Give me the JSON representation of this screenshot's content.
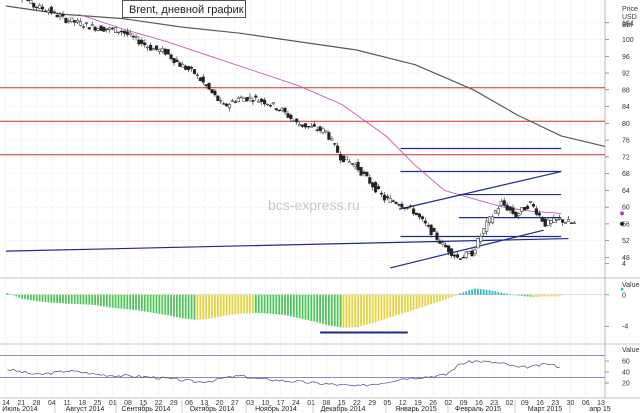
{
  "title": "Brent, дневной график",
  "watermark": "bcs-express.ru",
  "price_axis": {
    "header": [
      "Price",
      "USD",
      "Bbl"
    ],
    "ticks": [
      "104",
      "100",
      "96",
      "92",
      "88",
      "84",
      "80",
      "76",
      "72",
      "68",
      "64",
      "60",
      "56",
      "52",
      "48"
    ]
  },
  "indicator_axis": {
    "header": "Value",
    "ticks": [
      "4",
      "0",
      "-4"
    ]
  },
  "rsi_axis": {
    "header": "Value",
    "ticks": [
      "60",
      "40",
      "20"
    ]
  },
  "day_ticks": [
    "14",
    "21",
    "28",
    "04",
    "11",
    "18",
    "25",
    "01",
    "08",
    "15",
    "22",
    "29",
    "06",
    "13",
    "20",
    "27",
    "03",
    "10",
    "17",
    "24",
    "01",
    "08",
    "15",
    "22",
    "29",
    "05",
    "12",
    "19",
    "26",
    "02",
    "09",
    "16",
    "23",
    "02",
    "09",
    "16",
    "23",
    "30",
    "06",
    "13"
  ],
  "month_labels": [
    "Июль 2014",
    "Август 2014",
    "Сентябрь 2014",
    "Октябрь 2014",
    "Ноябрь 2014",
    "Декабрь 2014",
    "Январь 2015",
    "Февраль 2015",
    "Март 2015",
    "апр 15"
  ],
  "chart_data": {
    "type": "candlestick",
    "title": "Brent, дневной график",
    "price_ylim": [
      45,
      108
    ],
    "horizontal_levels": [
      {
        "value": 88.5,
        "color": "#c83232"
      },
      {
        "value": 80.5,
        "color": "#c83232"
      },
      {
        "value": 72.5,
        "color": "#c83232"
      },
      {
        "value": 74.0,
        "color": "#1e2a8c",
        "from_week": 27,
        "to_week": 38
      },
      {
        "value": 68.5,
        "color": "#1e2a8c",
        "from_week": 27,
        "to_week": 38
      },
      {
        "value": 63.0,
        "color": "#1e2a8c",
        "from_week": 31,
        "to_week": 38
      },
      {
        "value": 57.5,
        "color": "#1e2a8c",
        "from_week": 31,
        "to_week": 38
      },
      {
        "value": 53.0,
        "color": "#1e2a8c",
        "from_week": 27,
        "to_week": 38
      }
    ],
    "trendlines": [
      {
        "x1_week": 0,
        "y1": 49.5,
        "x2_week": 38.5,
        "y2": 52.5,
        "color": "#1e2a8c"
      },
      {
        "x1_week": 26.3,
        "y1": 45.5,
        "x2_week": 36.8,
        "y2": 54.5,
        "color": "#1e2a8c"
      },
      {
        "x1_week": 26.9,
        "y1": 59.5,
        "x2_week": 38.0,
        "y2": 68.5,
        "color": "#1e2a8c"
      }
    ],
    "price_weekly": [
      {
        "w": 0,
        "o": 112,
        "c": 111,
        "h": 113,
        "l": 110
      },
      {
        "w": 1,
        "o": 111,
        "c": 108,
        "h": 112,
        "l": 107
      },
      {
        "w": 2,
        "o": 108,
        "c": 107,
        "h": 109,
        "l": 106
      },
      {
        "w": 3,
        "o": 107,
        "c": 105,
        "h": 108,
        "l": 104
      },
      {
        "w": 4,
        "o": 105,
        "c": 104,
        "h": 106,
        "l": 103
      },
      {
        "w": 5,
        "o": 104,
        "c": 103,
        "h": 105,
        "l": 102
      },
      {
        "w": 6,
        "o": 103,
        "c": 102.5,
        "h": 104,
        "l": 101.5
      },
      {
        "w": 7,
        "o": 102.5,
        "c": 102,
        "h": 103.5,
        "l": 101
      },
      {
        "w": 8,
        "o": 102,
        "c": 100,
        "h": 103,
        "l": 99
      },
      {
        "w": 9,
        "o": 100,
        "c": 98,
        "h": 101,
        "l": 97
      },
      {
        "w": 10,
        "o": 98,
        "c": 97,
        "h": 99,
        "l": 96
      },
      {
        "w": 11,
        "o": 97,
        "c": 94,
        "h": 98,
        "l": 93
      },
      {
        "w": 12,
        "o": 94,
        "c": 92,
        "h": 95,
        "l": 91
      },
      {
        "w": 13,
        "o": 92,
        "c": 88,
        "h": 93,
        "l": 87
      },
      {
        "w": 14,
        "o": 88,
        "c": 84,
        "h": 89,
        "l": 83
      },
      {
        "w": 15,
        "o": 84,
        "c": 86,
        "h": 87,
        "l": 83
      },
      {
        "w": 16,
        "o": 86,
        "c": 86,
        "h": 87,
        "l": 85
      },
      {
        "w": 17,
        "o": 86,
        "c": 85,
        "h": 87,
        "l": 84
      },
      {
        "w": 18,
        "o": 85,
        "c": 83,
        "h": 86,
        "l": 82
      },
      {
        "w": 19,
        "o": 83,
        "c": 80,
        "h": 84,
        "l": 79
      },
      {
        "w": 20,
        "o": 80,
        "c": 79,
        "h": 81,
        "l": 78
      },
      {
        "w": 21,
        "o": 79,
        "c": 78,
        "h": 80,
        "l": 77
      },
      {
        "w": 22,
        "o": 78,
        "c": 72,
        "h": 79,
        "l": 71
      },
      {
        "w": 23,
        "o": 72,
        "c": 70,
        "h": 73,
        "l": 69
      },
      {
        "w": 24,
        "o": 70,
        "c": 66,
        "h": 71,
        "l": 65
      },
      {
        "w": 25,
        "o": 66,
        "c": 62,
        "h": 67,
        "l": 61
      },
      {
        "w": 26,
        "o": 62,
        "c": 61,
        "h": 63,
        "l": 60
      },
      {
        "w": 27,
        "o": 61,
        "c": 59,
        "h": 62,
        "l": 58
      },
      {
        "w": 28,
        "o": 59,
        "c": 55,
        "h": 60,
        "l": 54
      },
      {
        "w": 29,
        "o": 55,
        "c": 51,
        "h": 56,
        "l": 50
      },
      {
        "w": 30,
        "o": 51,
        "c": 48,
        "h": 52,
        "l": 46
      },
      {
        "w": 31,
        "o": 48,
        "c": 49,
        "h": 50,
        "l": 47
      },
      {
        "w": 32,
        "o": 49,
        "c": 56,
        "h": 58,
        "l": 48
      },
      {
        "w": 33,
        "o": 56,
        "c": 61,
        "h": 63,
        "l": 55
      },
      {
        "w": 34,
        "o": 61,
        "c": 58,
        "h": 62,
        "l": 57
      },
      {
        "w": 35,
        "o": 58,
        "c": 61,
        "h": 62,
        "l": 57
      },
      {
        "w": 36,
        "o": 61,
        "c": 56,
        "h": 62,
        "l": 55
      },
      {
        "w": 37,
        "o": 56,
        "c": 57,
        "h": 58,
        "l": 54
      },
      {
        "w": 38,
        "o": 57,
        "c": 56,
        "h": 60,
        "l": 55
      }
    ],
    "ma_long": [
      [
        0,
        108
      ],
      [
        4,
        106
      ],
      [
        8,
        105
      ],
      [
        12,
        103
      ],
      [
        16,
        101.5
      ],
      [
        20,
        99.5
      ],
      [
        24,
        97.5
      ],
      [
        28,
        94
      ],
      [
        32,
        88
      ],
      [
        35,
        82
      ],
      [
        38,
        77
      ],
      [
        41,
        74.5
      ]
    ],
    "ma_short": [
      [
        5,
        106
      ],
      [
        8,
        102.5
      ],
      [
        11,
        99.5
      ],
      [
        14,
        96
      ],
      [
        17,
        92.5
      ],
      [
        20,
        89
      ],
      [
        23,
        84.5
      ],
      [
        26,
        77
      ],
      [
        28,
        70
      ],
      [
        30,
        64
      ],
      [
        32,
        62
      ],
      [
        34,
        60
      ],
      [
        36,
        59
      ],
      [
        38,
        58.5
      ]
    ],
    "oscillator": {
      "ylim": [
        -5.5,
        1.5
      ],
      "values": [
        0.2,
        -0.5,
        -0.8,
        -1.0,
        -1.1,
        -1.2,
        -1.3,
        -1.6,
        -1.8,
        -2.0,
        -2.3,
        -2.6,
        -3.0,
        -3.2,
        -3.0,
        -2.6,
        -2.4,
        -2.3,
        -2.4,
        -2.6,
        -3.0,
        -3.4,
        -3.9,
        -4.2,
        -4.1,
        -3.6,
        -3.0,
        -2.4,
        -1.8,
        -1.2,
        -0.6,
        0.2,
        0.8,
        0.6,
        0.2,
        -0.1,
        -0.3,
        -0.2,
        -0.2
      ],
      "support_value": -4.8
    },
    "rsi": {
      "ylim": [
        0,
        80
      ],
      "levels": [
        70,
        30
      ],
      "values": [
        45,
        40,
        35,
        38,
        42,
        40,
        36,
        34,
        33,
        32,
        30,
        28,
        25,
        22,
        24,
        30,
        33,
        28,
        26,
        24,
        22,
        20,
        18,
        16,
        14,
        18,
        22,
        28,
        30,
        32,
        35,
        55,
        60,
        58,
        55,
        48,
        50,
        55,
        48
      ]
    }
  },
  "colors": {
    "candle_up": "#ffffff",
    "candle_down": "#222222",
    "candle_line": "#222222",
    "ma_long": "#5a5a5a",
    "ma_short": "#c05ab4",
    "level_red": "#c83232",
    "level_blue": "#1e2a8c",
    "osc_green": "#4fc45a",
    "osc_yellow": "#e6d23a",
    "osc_cyan": "#3ab8c8",
    "rsi_line": "#4a4a8a",
    "rsi_levels": "#7a5ab4"
  }
}
